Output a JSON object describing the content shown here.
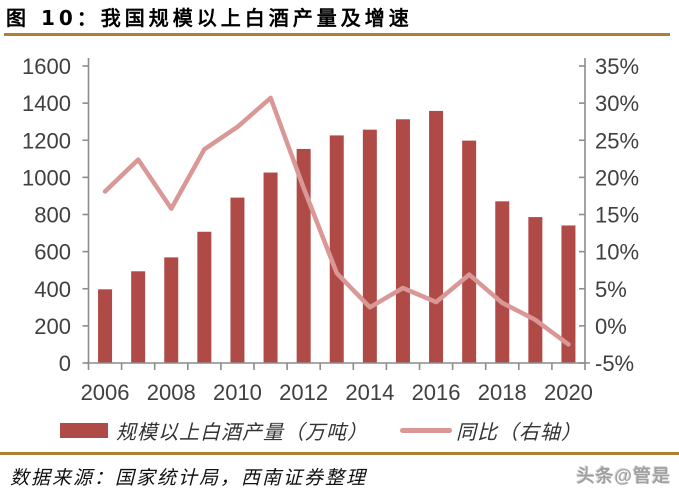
{
  "title": "图 10：我国规模以上白酒产量及增速",
  "source_note": "数据来源：国家统计局，西南证券整理",
  "watermark": "头条@管是",
  "colors": {
    "bar": "#B04A47",
    "line": "#D99795",
    "gold_rule": "#AD8032",
    "axis_line": "#8C8C8C",
    "axis_text": "#404040"
  },
  "chart_data": {
    "type": "bar+line",
    "title": "我国规模以上白酒产量及增速",
    "categories": [
      "2006",
      "2007",
      "2008",
      "2009",
      "2010",
      "2011",
      "2012",
      "2013",
      "2014",
      "2015",
      "2016",
      "2017",
      "2018",
      "2019",
      "2020"
    ],
    "series": [
      {
        "name": "规模以上白酒产量（万吨）",
        "type": "bar",
        "axis": "left",
        "values": [
          397,
          494,
          569,
          707,
          891,
          1026,
          1153,
          1226,
          1257,
          1313,
          1358,
          1198,
          871,
          786,
          741
        ]
      },
      {
        "name": "同比（右轴）",
        "type": "line",
        "axis": "right",
        "values": [
          18.1,
          22.4,
          15.8,
          23.8,
          26.8,
          30.7,
          18.6,
          7.1,
          2.5,
          5.1,
          3.2,
          6.9,
          3.1,
          0.8,
          -2.5
        ]
      }
    ],
    "left_axis": {
      "min": 0,
      "max": 1600,
      "step": 200,
      "labels": [
        "0",
        "200",
        "400",
        "600",
        "800",
        "1000",
        "1200",
        "1400",
        "1600"
      ]
    },
    "right_axis": {
      "min": -5,
      "max": 35,
      "step": 5,
      "labels": [
        "-5%",
        "0%",
        "5%",
        "10%",
        "15%",
        "20%",
        "25%",
        "30%",
        "35%"
      ]
    },
    "x_tick_labels": [
      "2006",
      "2008",
      "2010",
      "2012",
      "2014",
      "2016",
      "2018",
      "2020"
    ],
    "grid": false,
    "legend_position": "bottom"
  }
}
